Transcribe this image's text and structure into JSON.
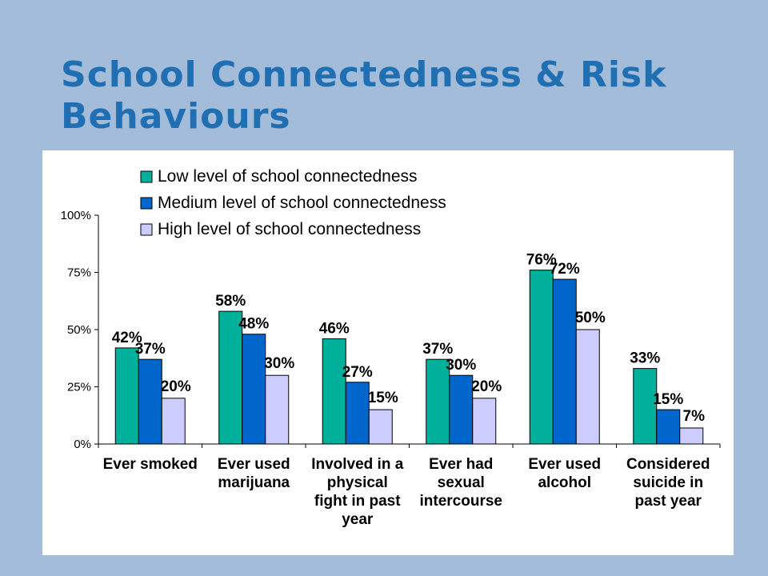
{
  "slide": {
    "title": "School Connectedness & Risk Behaviours"
  },
  "chart_data": {
    "type": "bar",
    "title": "",
    "xlabel": "",
    "ylabel": "",
    "ylim": [
      0,
      100
    ],
    "yticks": [
      "0%",
      "25%",
      "50%",
      "75%",
      "100%"
    ],
    "ytick_values": [
      0,
      25,
      50,
      75,
      100
    ],
    "grid": false,
    "legend_position": "top",
    "categories": [
      [
        "Ever smoked"
      ],
      [
        "Ever used",
        "marijuana"
      ],
      [
        "Involved in a",
        "physical",
        "fight in past",
        "year"
      ],
      [
        "Ever had",
        "sexual",
        "intercourse"
      ],
      [
        "Ever used",
        "alcohol"
      ],
      [
        "Considered",
        "suicide in",
        "past year"
      ]
    ],
    "series": [
      {
        "name": "Low level of school connectedness",
        "color": "#00B09B",
        "values": [
          42,
          58,
          46,
          37,
          76,
          33
        ],
        "labels": [
          "42%",
          "58%",
          "46%",
          "37%",
          "76%",
          "33%"
        ]
      },
      {
        "name": "Medium level of school connectedness",
        "color": "#0066CC",
        "values": [
          37,
          48,
          27,
          30,
          72,
          15
        ],
        "labels": [
          "37%",
          "48%",
          "27%",
          "30%",
          "72%",
          "15%"
        ]
      },
      {
        "name": "High level of school connectedness",
        "color": "#CCCCFF",
        "values": [
          20,
          30,
          15,
          20,
          50,
          7
        ],
        "labels": [
          "20%",
          "30%",
          "15%",
          "20%",
          "50%",
          "7%"
        ]
      }
    ]
  }
}
